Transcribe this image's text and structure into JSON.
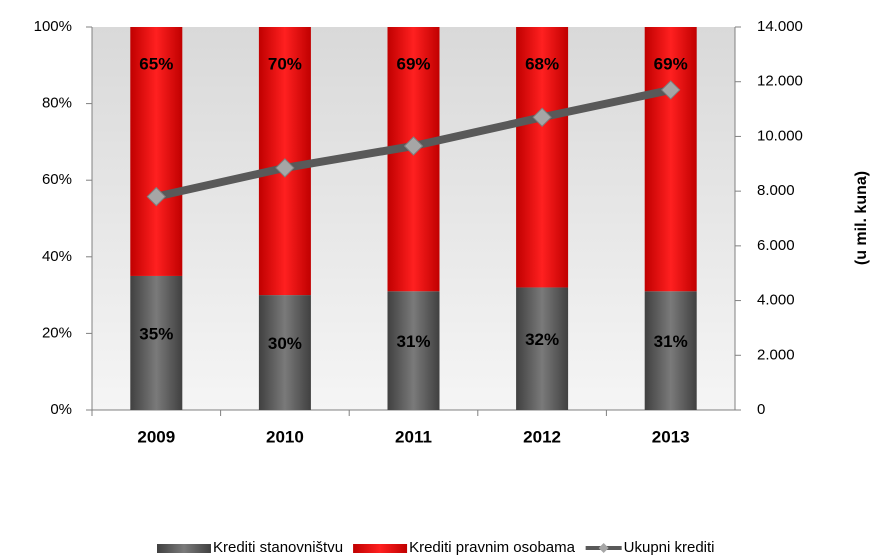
{
  "chart_data": {
    "type": "stacked_bar_line",
    "categories": [
      "2009",
      "2010",
      "2011",
      "2012",
      "2013"
    ],
    "series": [
      {
        "name": "Krediti stanovništvu",
        "color": "#595959",
        "values": [
          35,
          30,
          31,
          32,
          31
        ],
        "value_labels": [
          "35%",
          "30%",
          "31%",
          "32%",
          "31%"
        ]
      },
      {
        "name": "Krediti pravnim osobama",
        "color": "#ff0000",
        "values": [
          65,
          70,
          69,
          68,
          69
        ],
        "value_labels": [
          "65%",
          "70%",
          "69%",
          "68%",
          "69%"
        ]
      },
      {
        "name": "Ukupni krediti",
        "color": "#595959",
        "axis": "y2",
        "values": [
          7800,
          8850,
          9650,
          10700,
          11700
        ]
      }
    ],
    "ylim": [
      0,
      100
    ],
    "yticks": [
      {
        "value": 0,
        "label": "0%"
      },
      {
        "value": 20,
        "label": "20%"
      },
      {
        "value": 40,
        "label": "40%"
      },
      {
        "value": 60,
        "label": "60%"
      },
      {
        "value": 80,
        "label": "80%"
      },
      {
        "value": 100,
        "label": "100%"
      }
    ],
    "y2lim": [
      0,
      14000
    ],
    "y2ticks": [
      0,
      {
        "value": 2000,
        "label": "2.000"
      },
      {
        "value": 4000,
        "label": "4.000"
      },
      {
        "value": 6000,
        "label": "6.000"
      },
      {
        "value": 8000,
        "label": "8.000"
      },
      {
        "value": 10000,
        "label": "10.000"
      },
      {
        "value": 12000,
        "label": "12.000"
      },
      {
        "value": 14000,
        "label": "14.000"
      }
    ],
    "y2label": "(u mil. kuna)",
    "legend": "bottom"
  }
}
